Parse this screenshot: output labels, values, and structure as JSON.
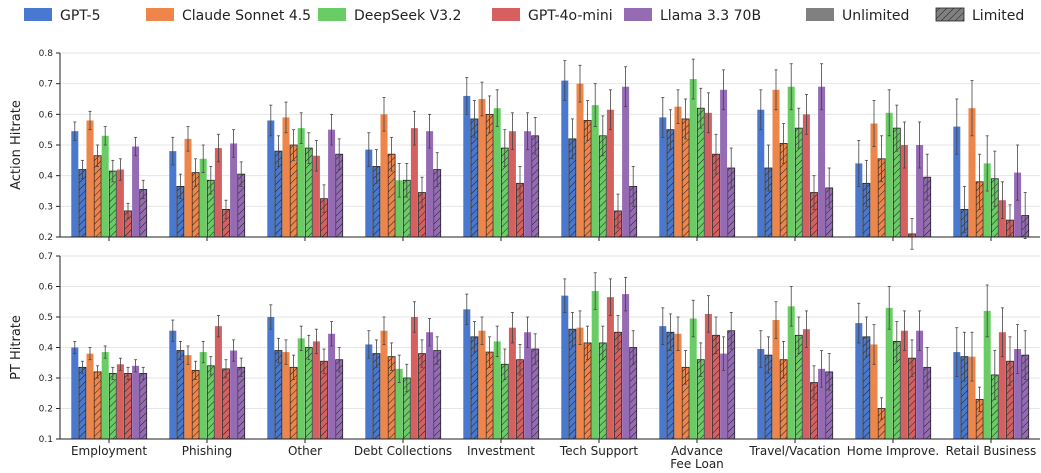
{
  "chart_data": {
    "type": "bar",
    "legend": {
      "placement": "top",
      "entries": [
        {
          "label": "GPT-5",
          "color": "#4878cf"
        },
        {
          "label": "Claude Sonnet 4.5",
          "color": "#ee854a"
        },
        {
          "label": "DeepSeek V3.2",
          "color": "#6acc64"
        },
        {
          "label": "GPT-4o-mini",
          "color": "#d65f5f"
        },
        {
          "label": "Llama 3.3 70B",
          "color": "#956cb4"
        },
        {
          "label": "Unlimited",
          "color": "#808080",
          "pattern": "solid"
        },
        {
          "label": "Limited",
          "color": "#808080",
          "pattern": "hatched"
        }
      ]
    },
    "categories": [
      "Employment",
      "Phishing",
      "Other",
      "Debt Collections",
      "Investment",
      "Tech Support",
      "Advance\nFee Loan",
      "Travel/Vacation",
      "Home Improve.",
      "Retail Business"
    ],
    "models": [
      "GPT-5",
      "Claude Sonnet 4.5",
      "DeepSeek V3.2",
      "GPT-4o-mini",
      "Llama 3.3 70B"
    ],
    "colors": [
      "#4878cf",
      "#ee854a",
      "#6acc64",
      "#d65f5f",
      "#956cb4"
    ],
    "grid": "horizontal",
    "panels": [
      {
        "ylabel": "Action Hitrate",
        "ylim": [
          0.2,
          0.8
        ],
        "yticks": [
          "0.2",
          "0.3",
          "0.4",
          "0.5",
          "0.6",
          "0.7",
          "0.8"
        ],
        "unlimited": [
          [
            0.545,
            0.48,
            0.58,
            0.485,
            0.66,
            0.71,
            0.59,
            0.615,
            0.44,
            0.56
          ],
          [
            0.58,
            0.52,
            0.59,
            0.6,
            0.65,
            0.7,
            0.625,
            0.68,
            0.57,
            0.62
          ],
          [
            0.53,
            0.455,
            0.555,
            0.385,
            0.62,
            0.63,
            0.715,
            0.69,
            0.605,
            0.44
          ],
          [
            0.42,
            0.49,
            0.465,
            0.555,
            0.545,
            0.615,
            0.605,
            0.6,
            0.5,
            0.32
          ],
          [
            0.495,
            0.505,
            0.55,
            0.545,
            0.545,
            0.69,
            0.68,
            0.69,
            0.5,
            0.41
          ]
        ],
        "limited": [
          [
            0.42,
            0.365,
            0.48,
            0.43,
            0.585,
            0.52,
            0.55,
            0.425,
            0.375,
            0.29
          ],
          [
            0.465,
            0.41,
            0.5,
            0.47,
            0.6,
            0.58,
            0.585,
            0.505,
            0.455,
            0.38
          ],
          [
            0.415,
            0.385,
            0.49,
            0.385,
            0.49,
            0.53,
            0.62,
            0.555,
            0.555,
            0.39
          ],
          [
            0.285,
            0.29,
            0.325,
            0.345,
            0.375,
            0.285,
            0.47,
            0.345,
            0.21,
            0.255
          ],
          [
            0.355,
            0.405,
            0.47,
            0.42,
            0.53,
            0.365,
            0.425,
            0.36,
            0.395,
            0.27
          ]
        ],
        "err_unlimited": [
          [
            0.03,
            0.045,
            0.05,
            0.055,
            0.06,
            0.065,
            0.065,
            0.065,
            0.075,
            0.09
          ],
          [
            0.03,
            0.04,
            0.05,
            0.055,
            0.055,
            0.06,
            0.055,
            0.065,
            0.075,
            0.09
          ],
          [
            0.03,
            0.045,
            0.05,
            0.055,
            0.06,
            0.07,
            0.065,
            0.075,
            0.075,
            0.09
          ],
          [
            0.035,
            0.045,
            0.05,
            0.055,
            0.06,
            0.065,
            0.065,
            0.065,
            0.075,
            0.06
          ],
          [
            0.03,
            0.045,
            0.05,
            0.055,
            0.06,
            0.065,
            0.065,
            0.075,
            0.075,
            0.09
          ]
        ],
        "err_limited": [
          [
            0.03,
            0.04,
            0.05,
            0.055,
            0.06,
            0.065,
            0.065,
            0.075,
            0.075,
            0.075
          ],
          [
            0.035,
            0.045,
            0.05,
            0.055,
            0.06,
            0.065,
            0.065,
            0.065,
            0.075,
            0.09
          ],
          [
            0.035,
            0.045,
            0.05,
            0.055,
            0.06,
            0.065,
            0.065,
            0.065,
            0.075,
            0.09
          ],
          [
            0.025,
            0.03,
            0.045,
            0.05,
            0.055,
            0.055,
            0.065,
            0.055,
            0.05,
            0.05
          ],
          [
            0.03,
            0.04,
            0.05,
            0.055,
            0.06,
            0.065,
            0.065,
            0.065,
            0.075,
            0.075
          ]
        ]
      },
      {
        "ylabel": "PT Hitrate",
        "ylim": [
          0.1,
          0.7
        ],
        "yticks": [
          "0.1",
          "0.2",
          "0.3",
          "0.4",
          "0.5",
          "0.6",
          "0.7"
        ],
        "unlimited": [
          [
            0.4,
            0.455,
            0.5,
            0.41,
            0.525,
            0.57,
            0.47,
            0.395,
            0.48,
            0.385
          ],
          [
            0.38,
            0.375,
            0.385,
            0.455,
            0.455,
            0.465,
            0.445,
            0.49,
            0.41,
            0.37
          ],
          [
            0.385,
            0.385,
            0.43,
            0.33,
            0.42,
            0.585,
            0.495,
            0.535,
            0.53,
            0.52
          ],
          [
            0.345,
            0.47,
            0.42,
            0.5,
            0.465,
            0.565,
            0.51,
            0.46,
            0.455,
            0.45
          ],
          [
            0.34,
            0.39,
            0.445,
            0.45,
            0.45,
            0.575,
            0.38,
            0.33,
            0.455,
            0.395
          ]
        ],
        "limited": [
          [
            0.335,
            0.39,
            0.39,
            0.38,
            0.435,
            0.46,
            0.45,
            0.375,
            0.435,
            0.37
          ],
          [
            0.32,
            0.325,
            0.335,
            0.37,
            0.385,
            0.415,
            0.335,
            0.36,
            0.2,
            0.23
          ],
          [
            0.315,
            0.34,
            0.4,
            0.3,
            0.345,
            0.415,
            0.36,
            0.44,
            0.42,
            0.31
          ],
          [
            0.315,
            0.33,
            0.355,
            0.38,
            0.36,
            0.45,
            0.44,
            0.285,
            0.365,
            0.355
          ],
          [
            0.315,
            0.335,
            0.36,
            0.39,
            0.395,
            0.4,
            0.455,
            0.32,
            0.335,
            0.375
          ]
        ],
        "err_unlimited": [
          [
            0.02,
            0.035,
            0.04,
            0.045,
            0.05,
            0.055,
            0.06,
            0.06,
            0.065,
            0.08
          ],
          [
            0.02,
            0.03,
            0.04,
            0.045,
            0.045,
            0.055,
            0.055,
            0.06,
            0.065,
            0.08
          ],
          [
            0.02,
            0.035,
            0.04,
            0.045,
            0.05,
            0.06,
            0.06,
            0.065,
            0.07,
            0.085
          ],
          [
            0.02,
            0.035,
            0.04,
            0.05,
            0.05,
            0.06,
            0.06,
            0.06,
            0.065,
            0.08
          ],
          [
            0.02,
            0.035,
            0.04,
            0.045,
            0.05,
            0.055,
            0.055,
            0.06,
            0.065,
            0.08
          ]
        ],
        "err_limited": [
          [
            0.02,
            0.03,
            0.04,
            0.045,
            0.05,
            0.055,
            0.06,
            0.06,
            0.065,
            0.08
          ],
          [
            0.02,
            0.03,
            0.04,
            0.045,
            0.05,
            0.055,
            0.055,
            0.06,
            0.035,
            0.04
          ],
          [
            0.02,
            0.03,
            0.04,
            0.045,
            0.05,
            0.055,
            0.055,
            0.06,
            0.065,
            0.08
          ],
          [
            0.02,
            0.03,
            0.04,
            0.045,
            0.05,
            0.055,
            0.06,
            0.055,
            0.06,
            0.08
          ],
          [
            0.02,
            0.03,
            0.04,
            0.045,
            0.05,
            0.055,
            0.06,
            0.06,
            0.065,
            0.08
          ]
        ]
      }
    ]
  }
}
